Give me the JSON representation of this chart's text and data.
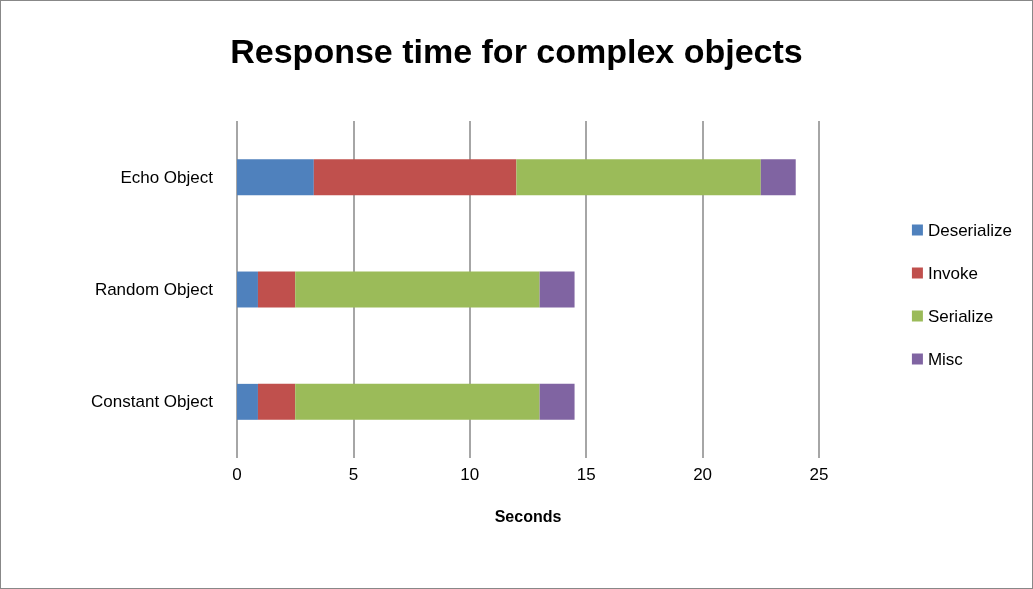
{
  "chart_data": {
    "type": "bar",
    "orientation": "horizontal",
    "stacked": true,
    "title": "Response time for complex objects",
    "xlabel": "Seconds",
    "categories": [
      "Echo Object",
      "Random Object",
      "Constant Object"
    ],
    "series": [
      {
        "name": "Deserialize",
        "color": "#4f81bd",
        "values": [
          3.3,
          0.9,
          0.9
        ]
      },
      {
        "name": "Invoke",
        "color": "#c0504d",
        "values": [
          8.7,
          1.6,
          1.6
        ]
      },
      {
        "name": "Serialize",
        "color": "#9bbb59",
        "values": [
          10.5,
          10.5,
          10.5
        ]
      },
      {
        "name": "Misc",
        "color": "#8064a2",
        "values": [
          1.5,
          1.5,
          1.5
        ]
      }
    ],
    "xlim": [
      0,
      25
    ],
    "xticks": [
      0,
      5,
      10,
      15,
      20,
      25
    ],
    "grid": "x",
    "legend": "right"
  }
}
